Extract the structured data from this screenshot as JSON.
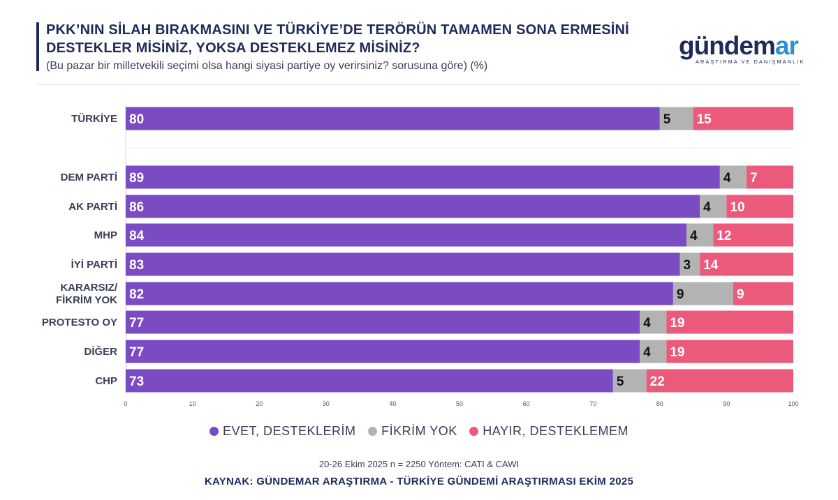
{
  "header": {
    "title": "PKK’NIN SİLAH BIRAKMASINI VE TÜRKİYE’DE TERÖRÜN TAMAMEN SONA ERMESİNİ DESTEKLER MİSİNİZ, YOKSA DESTEKLEMEZ MİSİNİZ?",
    "subtitle": "(Bu pazar bir milletvekili seçimi olsa hangi siyasi partiye oy verirsiniz? sorusuna göre) (%)"
  },
  "logo": {
    "word_main": "gündem",
    "word_accent": "ar",
    "tagline": "ARAŞTIRMA VE DANIŞMANLIK"
  },
  "colors": {
    "evet": "#7b4bc4",
    "fikrim_yok": "#b3b3b3",
    "hayir": "#eb5a7a",
    "navy": "#1e2a5a",
    "value_label_on_light": "#111111",
    "value_label_on_dark": "#ffffff"
  },
  "chart_data": {
    "type": "bar",
    "orientation": "horizontal",
    "stacked": true,
    "categories": [
      "TÜRKİYE",
      "DEM PARTİ",
      "AK PARTİ",
      "MHP",
      "İYİ PARTİ",
      "KARARSIZ/\nFİKRİM YOK",
      "PROTESTO OY",
      "DİĞER",
      "CHP"
    ],
    "series": [
      {
        "name": "EVET, DESTEKLERİM",
        "color": "#7b4bc4",
        "values": [
          80,
          89,
          86,
          84,
          83,
          82,
          77,
          77,
          73
        ]
      },
      {
        "name": "FİKRİM YOK",
        "color": "#b3b3b3",
        "values": [
          5,
          4,
          4,
          4,
          3,
          9,
          4,
          4,
          5
        ]
      },
      {
        "name": "HAYIR, DESTEKLEMEM",
        "color": "#eb5a7a",
        "values": [
          15,
          7,
          10,
          12,
          14,
          9,
          19,
          19,
          22
        ]
      }
    ],
    "xlim": [
      0,
      100
    ],
    "xticks": [
      0,
      10,
      20,
      30,
      40,
      50,
      60,
      70,
      80,
      90,
      100
    ],
    "data_labels": true,
    "legend_position": "bottom",
    "grid": false
  },
  "footer": {
    "note": "20-26 Ekim 2025 n = 2250 Yöntem: CATI & CAWI",
    "source": "KAYNAK: GÜNDEMAR ARAŞTIRMA - TÜRKİYE GÜNDEMİ ARAŞTIRMASI EKİM 2025"
  }
}
